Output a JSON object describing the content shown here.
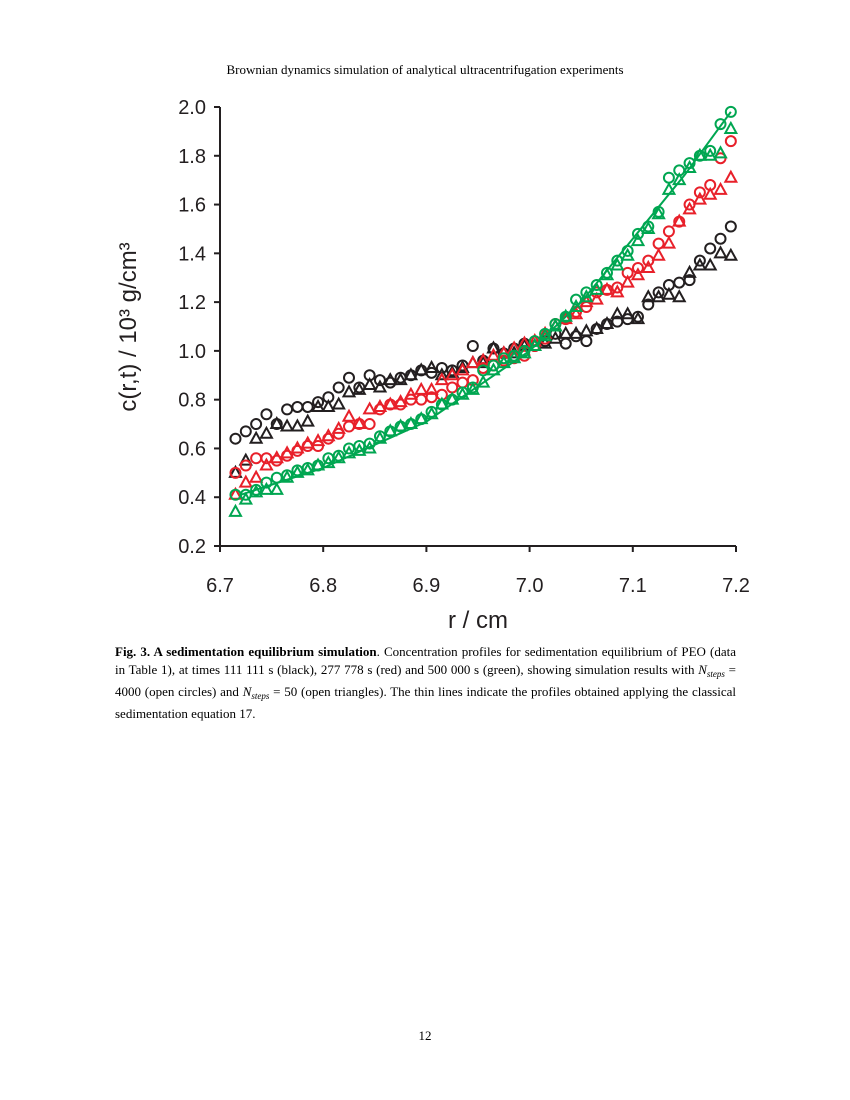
{
  "header": "Brownian dynamics simulation of analytical ultracentrifugation experiments",
  "chart_data": {
    "type": "scatter",
    "xlabel": "r / cm",
    "ylabel": "c(r,t)  / 10³ g/cm³",
    "xlim": [
      6.7,
      7.2
    ],
    "ylim": [
      0.2,
      2.0
    ],
    "xticks": [
      6.7,
      6.8,
      6.9,
      {
        "value": 7,
        "label": "7.0"
      },
      7.1,
      7.2
    ],
    "yticks": [
      0.2,
      0.4,
      0.6,
      0.8,
      {
        "value": 1,
        "label": "1.0"
      },
      1.2,
      1.4,
      1.6,
      1.8,
      {
        "value": 2,
        "label": "2.0"
      }
    ],
    "x": [
      6.715,
      6.725,
      6.735,
      6.745,
      6.755,
      6.765,
      6.775,
      6.785,
      6.795,
      6.805,
      6.815,
      6.825,
      6.835,
      6.845,
      6.855,
      6.865,
      6.875,
      6.885,
      6.895,
      6.905,
      6.915,
      6.925,
      6.935,
      6.945,
      6.955,
      6.965,
      6.975,
      6.985,
      6.995,
      7.005,
      7.015,
      7.025,
      7.035,
      7.045,
      7.055,
      7.065,
      7.075,
      7.085,
      7.095,
      7.105,
      7.115,
      7.125,
      7.135,
      7.145,
      7.155,
      7.165,
      7.175,
      7.185,
      7.195
    ],
    "series": [
      {
        "marker": "circle",
        "color": "#231f20",
        "values": [
          0.64,
          0.67,
          0.7,
          0.74,
          0.7,
          0.76,
          0.77,
          0.77,
          0.79,
          0.81,
          0.85,
          0.89,
          0.85,
          0.9,
          0.88,
          0.87,
          0.89,
          0.9,
          0.92,
          0.91,
          0.93,
          0.92,
          0.94,
          1.02,
          0.96,
          1.01,
          0.99,
          1.01,
          1.03,
          1.02,
          1.04,
          1.07,
          1.03,
          1.06,
          1.04,
          1.09,
          1.11,
          1.12,
          1.13,
          1.14,
          1.19,
          1.24,
          1.27,
          1.28,
          1.29,
          1.37,
          1.42,
          1.46,
          1.51
        ]
      },
      {
        "marker": "triangle",
        "color": "#231f20",
        "values": [
          0.5,
          0.55,
          0.64,
          0.66,
          0.7,
          0.69,
          0.69,
          0.71,
          0.77,
          0.77,
          0.78,
          0.83,
          0.84,
          0.86,
          0.85,
          0.88,
          0.88,
          0.9,
          0.92,
          0.93,
          0.9,
          0.91,
          0.93,
          0.95,
          0.95,
          1.01,
          0.99,
          0.99,
          1.02,
          1.02,
          1.03,
          1.05,
          1.07,
          1.07,
          1.08,
          1.09,
          1.11,
          1.15,
          1.15,
          1.13,
          1.22,
          1.22,
          1.23,
          1.22,
          1.32,
          1.35,
          1.35,
          1.4,
          1.39
        ]
      },
      {
        "marker": "circle",
        "color": "#e8202a",
        "values": [
          0.5,
          0.53,
          0.56,
          0.56,
          0.55,
          0.57,
          0.59,
          0.61,
          0.61,
          0.64,
          0.66,
          0.69,
          0.7,
          0.7,
          0.76,
          0.78,
          0.78,
          0.8,
          0.8,
          0.81,
          0.82,
          0.85,
          0.87,
          0.88,
          0.93,
          0.94,
          0.96,
          0.97,
          0.98,
          1.02,
          1.05,
          1.11,
          1.13,
          1.16,
          1.18,
          1.24,
          1.25,
          1.26,
          1.32,
          1.34,
          1.37,
          1.44,
          1.49,
          1.53,
          1.6,
          1.65,
          1.68,
          1.79,
          1.86
        ]
      },
      {
        "marker": "triangle",
        "color": "#e8202a",
        "values": [
          0.41,
          0.46,
          0.48,
          0.53,
          0.56,
          0.58,
          0.6,
          0.62,
          0.63,
          0.65,
          0.68,
          0.73,
          0.7,
          0.76,
          0.77,
          0.78,
          0.79,
          0.82,
          0.84,
          0.84,
          0.88,
          0.9,
          0.92,
          0.95,
          0.96,
          0.98,
          0.99,
          1.01,
          1.03,
          1.04,
          1.07,
          1.1,
          1.13,
          1.15,
          1.2,
          1.21,
          1.25,
          1.24,
          1.28,
          1.31,
          1.34,
          1.39,
          1.44,
          1.53,
          1.58,
          1.62,
          1.64,
          1.66,
          1.71
        ]
      },
      {
        "marker": "circle",
        "color": "#00a651",
        "values": [
          0.41,
          0.41,
          0.43,
          0.46,
          0.48,
          0.49,
          0.51,
          0.52,
          0.53,
          0.56,
          0.57,
          0.6,
          0.61,
          0.62,
          0.65,
          0.67,
          0.69,
          0.7,
          0.72,
          0.75,
          0.78,
          0.8,
          0.83,
          0.85,
          0.92,
          0.94,
          0.97,
          0.98,
          1.0,
          1.04,
          1.07,
          1.11,
          1.14,
          1.21,
          1.24,
          1.27,
          1.32,
          1.37,
          1.41,
          1.48,
          1.51,
          1.57,
          1.71,
          1.74,
          1.77,
          1.8,
          1.82,
          1.93,
          1.98
        ]
      },
      {
        "marker": "triangle",
        "color": "#00a651",
        "values": [
          0.34,
          0.39,
          0.42,
          0.43,
          0.43,
          0.48,
          0.5,
          0.51,
          0.53,
          0.54,
          0.56,
          0.58,
          0.59,
          0.6,
          0.64,
          0.67,
          0.69,
          0.7,
          0.72,
          0.74,
          0.78,
          0.8,
          0.82,
          0.84,
          0.87,
          0.92,
          0.95,
          0.97,
          0.99,
          1.02,
          1.06,
          1.1,
          1.14,
          1.18,
          1.22,
          1.25,
          1.31,
          1.35,
          1.39,
          1.45,
          1.5,
          1.56,
          1.66,
          1.7,
          1.75,
          1.8,
          1.8,
          1.81,
          1.91
        ]
      },
      {
        "marker": "line",
        "color": "#00a651",
        "x": [
          6.72,
          6.8,
          6.9,
          7.0,
          7.05,
          7.1,
          7.15,
          7.195
        ],
        "values": [
          0.41,
          0.52,
          0.71,
          1.0,
          1.2,
          1.46,
          1.72,
          1.98
        ]
      }
    ]
  },
  "caption": {
    "title": "Fig. 3. A sedimentation equilibrium simulation",
    "parts": [
      {
        "text": ". Concentration profiles for sedimentation equilibrium of PEO (data in Table 1), at times 111 111 s (black), 277 778 s (red) and 500 000 s (green), showing simulation results with ",
        "style": "normal"
      },
      {
        "text": "N",
        "style": "italic"
      },
      {
        "text": "steps",
        "style": "sub"
      },
      {
        "text": " = 4000 (open circles) and ",
        "style": "normal"
      },
      {
        "text": "N",
        "style": "italic"
      },
      {
        "text": "steps",
        "style": "sub"
      },
      {
        "text": " = 50 (open triangles). The thin lines indicate the profiles obtained applying the classical sedimentation equation 17.",
        "style": "normal"
      }
    ]
  },
  "page_number": "12"
}
